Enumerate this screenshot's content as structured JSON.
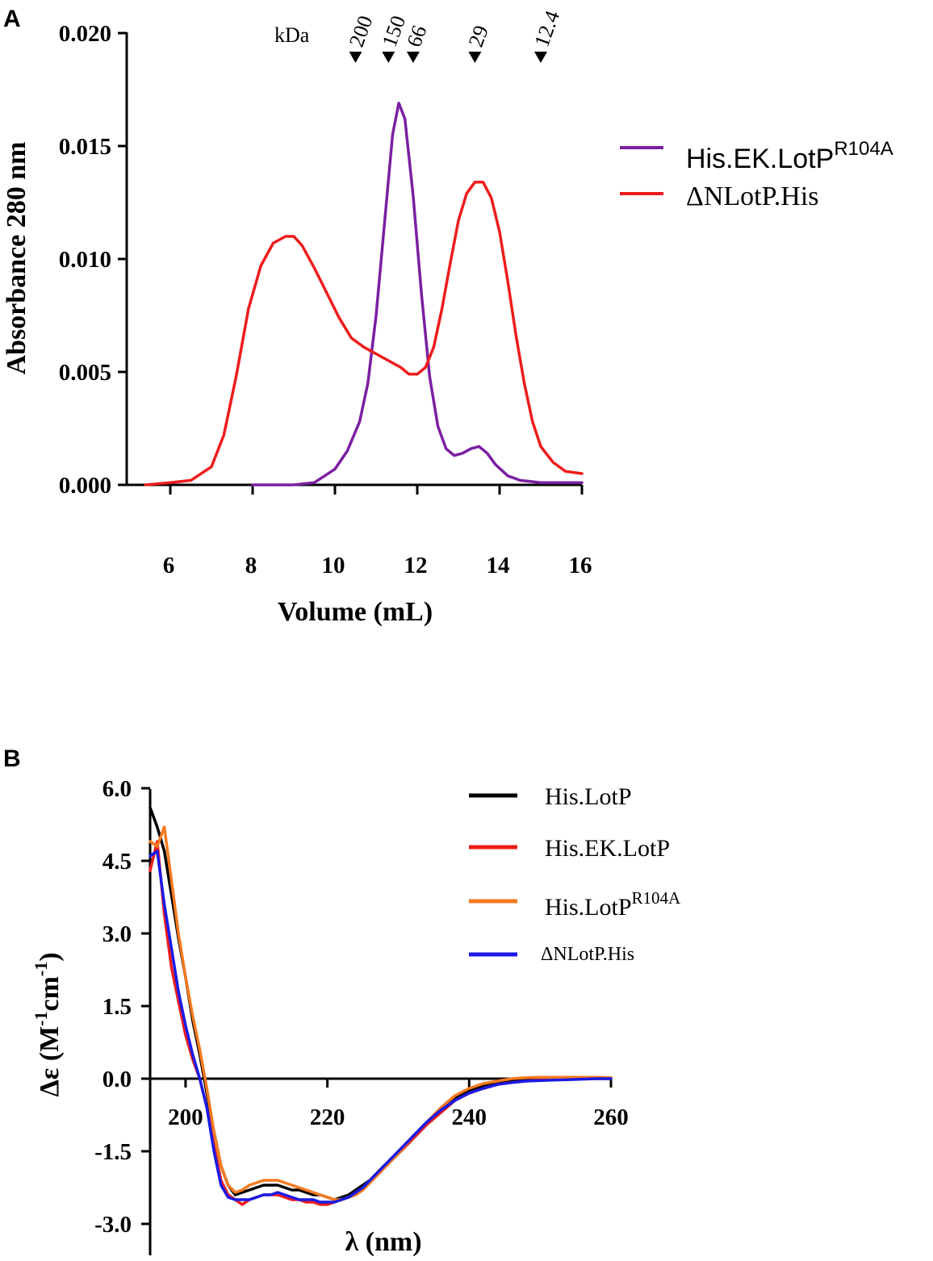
{
  "chart_data": [
    {
      "panel": "A",
      "type": "line",
      "title": "",
      "xlabel": "Volume (mL)",
      "ylabel": "Absorbance 280 nm",
      "xlim": [
        5,
        16
      ],
      "ylim": [
        0,
        0.02
      ],
      "xticks": [
        "6",
        "8",
        "10",
        "12",
        "14",
        "16"
      ],
      "xtick_values": [
        6,
        8,
        10,
        12,
        14,
        16
      ],
      "yticks": [
        "0.000",
        "0.005",
        "0.010",
        "0.015",
        "0.020"
      ],
      "ytick_values": [
        0,
        0.005,
        0.01,
        0.015,
        0.02
      ],
      "markers_unit": "kDa",
      "markers": [
        {
          "label": "200",
          "x": 10.5
        },
        {
          "label": "150",
          "x": 11.3
        },
        {
          "label": "66",
          "x": 11.9
        },
        {
          "label": "29",
          "x": 13.4
        },
        {
          "label": "12.4",
          "x": 15.0
        }
      ],
      "legend_position": "right",
      "series": [
        {
          "name": "His.EK.LotP",
          "name_sup": "R104A",
          "color": "#7B1FA2",
          "x": [
            8.0,
            8.5,
            9.0,
            9.5,
            10.0,
            10.3,
            10.6,
            10.8,
            11.0,
            11.2,
            11.4,
            11.55,
            11.7,
            11.9,
            12.1,
            12.3,
            12.5,
            12.7,
            12.9,
            13.1,
            13.3,
            13.5,
            13.7,
            13.9,
            14.2,
            14.5,
            15.0,
            15.5,
            16.0
          ],
          "y": [
            0.0,
            0.0,
            0.0,
            0.0001,
            0.0007,
            0.0015,
            0.0028,
            0.0045,
            0.0075,
            0.0115,
            0.0155,
            0.0169,
            0.0162,
            0.0128,
            0.0085,
            0.0048,
            0.0026,
            0.0016,
            0.0013,
            0.0014,
            0.0016,
            0.0017,
            0.0014,
            0.0009,
            0.0004,
            0.0002,
            0.0001,
            0.0001,
            0.0001
          ]
        },
        {
          "name": "ΔNLotP.His",
          "name_sup": "",
          "color": "#EE1C1C",
          "x": [
            5.4,
            6.0,
            6.5,
            7.0,
            7.3,
            7.6,
            7.9,
            8.2,
            8.5,
            8.8,
            9.0,
            9.2,
            9.5,
            9.8,
            10.1,
            10.4,
            10.7,
            11.0,
            11.3,
            11.6,
            11.8,
            12.0,
            12.2,
            12.4,
            12.6,
            12.8,
            13.0,
            13.2,
            13.4,
            13.6,
            13.8,
            14.0,
            14.2,
            14.4,
            14.6,
            14.8,
            15.0,
            15.3,
            15.6,
            16.0
          ],
          "y": [
            0.0,
            0.0001,
            0.0002,
            0.0008,
            0.0022,
            0.0048,
            0.0078,
            0.0097,
            0.0107,
            0.011,
            0.011,
            0.0106,
            0.0096,
            0.0085,
            0.0074,
            0.0065,
            0.0061,
            0.0058,
            0.0055,
            0.0052,
            0.0049,
            0.0049,
            0.0052,
            0.0061,
            0.0078,
            0.0098,
            0.0117,
            0.0129,
            0.0134,
            0.0134,
            0.0127,
            0.0112,
            0.009,
            0.0066,
            0.0045,
            0.0028,
            0.0017,
            0.001,
            0.0006,
            0.0005
          ]
        }
      ]
    },
    {
      "panel": "B",
      "type": "line",
      "title": "",
      "xlabel": "λ  (nm)",
      "ylabel": "Δε (M-1cm-1)",
      "ylabel_parts": {
        "prefix": "Δε  (M",
        "sup1": "-1",
        "mid": "cm",
        "sup2": "-1",
        "suffix": ")"
      },
      "xlim": [
        195,
        260
      ],
      "ylim": [
        -3.3,
        6.0
      ],
      "xticks": [
        "200",
        "220",
        "240",
        "260"
      ],
      "xtick_values": [
        200,
        220,
        240,
        260
      ],
      "yticks": [
        "6.0",
        "4.5",
        "3.0",
        "1.5",
        "0.0",
        "-1.5",
        "-3.0"
      ],
      "ytick_values": [
        6.0,
        4.5,
        3.0,
        1.5,
        0.0,
        -1.5,
        -3.0
      ],
      "legend_position": "top-right",
      "series": [
        {
          "name": "His.LotP",
          "name_sup": "",
          "color": "#000000",
          "x": [
            195,
            196,
            197,
            198,
            199,
            200,
            201,
            202,
            203,
            204,
            205,
            206,
            207,
            208,
            209,
            210,
            211,
            212,
            213,
            214,
            215,
            216,
            217,
            218,
            219,
            220,
            221,
            222,
            223,
            224,
            225,
            226,
            227,
            228,
            230,
            232,
            234,
            236,
            238,
            240,
            242,
            244,
            246,
            248,
            250,
            252,
            254,
            256,
            258,
            260
          ],
          "y": [
            5.6,
            5.2,
            4.7,
            3.8,
            2.9,
            2.1,
            1.2,
            0.5,
            -0.3,
            -1.1,
            -1.8,
            -2.2,
            -2.4,
            -2.35,
            -2.3,
            -2.25,
            -2.2,
            -2.2,
            -2.2,
            -2.25,
            -2.3,
            -2.3,
            -2.35,
            -2.4,
            -2.4,
            -2.45,
            -2.5,
            -2.45,
            -2.4,
            -2.3,
            -2.2,
            -2.1,
            -1.95,
            -1.8,
            -1.55,
            -1.25,
            -0.95,
            -0.65,
            -0.4,
            -0.25,
            -0.15,
            -0.08,
            -0.05,
            -0.03,
            -0.02,
            -0.01,
            0.0,
            0.0,
            0.0,
            0.0
          ]
        },
        {
          "name": "His.EK.LotP",
          "name_sup": "",
          "color": "#EE1C1C",
          "x": [
            195,
            196,
            197,
            198,
            199,
            200,
            201,
            202,
            203,
            204,
            205,
            206,
            207,
            208,
            209,
            210,
            211,
            212,
            213,
            214,
            215,
            216,
            217,
            218,
            219,
            220,
            221,
            222,
            223,
            224,
            225,
            226,
            227,
            228,
            230,
            232,
            234,
            236,
            238,
            240,
            242,
            244,
            246,
            248,
            250,
            252,
            254,
            256,
            258,
            260
          ],
          "y": [
            4.3,
            4.9,
            3.4,
            2.3,
            1.6,
            0.9,
            0.4,
            0.0,
            -0.6,
            -1.4,
            -2.1,
            -2.4,
            -2.5,
            -2.6,
            -2.5,
            -2.45,
            -2.4,
            -2.4,
            -2.4,
            -2.45,
            -2.5,
            -2.5,
            -2.55,
            -2.55,
            -2.6,
            -2.6,
            -2.55,
            -2.5,
            -2.45,
            -2.35,
            -2.25,
            -2.1,
            -1.95,
            -1.8,
            -1.55,
            -1.25,
            -0.95,
            -0.7,
            -0.45,
            -0.3,
            -0.2,
            -0.12,
            -0.08,
            -0.05,
            -0.03,
            -0.02,
            -0.01,
            0.0,
            0.0,
            0.0
          ]
        },
        {
          "name": "His.LotP",
          "name_sup": "R104A",
          "color": "#F47A20",
          "x": [
            195,
            196,
            197,
            198,
            199,
            200,
            201,
            202,
            203,
            204,
            205,
            206,
            207,
            208,
            209,
            210,
            211,
            212,
            213,
            214,
            215,
            216,
            217,
            218,
            219,
            220,
            221,
            222,
            223,
            224,
            225,
            226,
            227,
            228,
            230,
            232,
            234,
            236,
            238,
            240,
            242,
            244,
            246,
            248,
            250,
            252,
            254,
            256,
            258,
            260
          ],
          "y": [
            4.9,
            4.8,
            5.2,
            4.1,
            3.0,
            2.1,
            1.3,
            0.6,
            -0.2,
            -1.1,
            -1.8,
            -2.2,
            -2.35,
            -2.3,
            -2.2,
            -2.15,
            -2.1,
            -2.1,
            -2.1,
            -2.15,
            -2.2,
            -2.25,
            -2.3,
            -2.35,
            -2.4,
            -2.45,
            -2.5,
            -2.5,
            -2.45,
            -2.4,
            -2.3,
            -2.15,
            -2.0,
            -1.85,
            -1.55,
            -1.2,
            -0.9,
            -0.6,
            -0.35,
            -0.2,
            -0.1,
            -0.05,
            0.0,
            0.02,
            0.03,
            0.03,
            0.03,
            0.03,
            0.03,
            0.02
          ]
        },
        {
          "name": "ΔNLotP.His",
          "name_sup": "",
          "color": "#1A1AE6",
          "x": [
            195,
            196,
            197,
            198,
            199,
            200,
            201,
            202,
            203,
            204,
            205,
            206,
            207,
            208,
            209,
            210,
            211,
            212,
            213,
            214,
            215,
            216,
            217,
            218,
            219,
            220,
            221,
            222,
            223,
            224,
            225,
            226,
            227,
            228,
            230,
            232,
            234,
            236,
            238,
            240,
            242,
            244,
            246,
            248,
            250,
            252,
            254,
            256,
            258,
            260
          ],
          "y": [
            4.6,
            4.7,
            3.6,
            2.7,
            1.8,
            1.1,
            0.5,
            0.0,
            -0.6,
            -1.5,
            -2.2,
            -2.45,
            -2.5,
            -2.5,
            -2.5,
            -2.45,
            -2.4,
            -2.4,
            -2.35,
            -2.4,
            -2.45,
            -2.5,
            -2.5,
            -2.5,
            -2.55,
            -2.55,
            -2.55,
            -2.5,
            -2.45,
            -2.35,
            -2.25,
            -2.1,
            -1.95,
            -1.8,
            -1.5,
            -1.2,
            -0.9,
            -0.65,
            -0.45,
            -0.3,
            -0.2,
            -0.12,
            -0.08,
            -0.05,
            -0.04,
            -0.03,
            -0.02,
            -0.01,
            0.0,
            0.0
          ]
        }
      ]
    }
  ]
}
